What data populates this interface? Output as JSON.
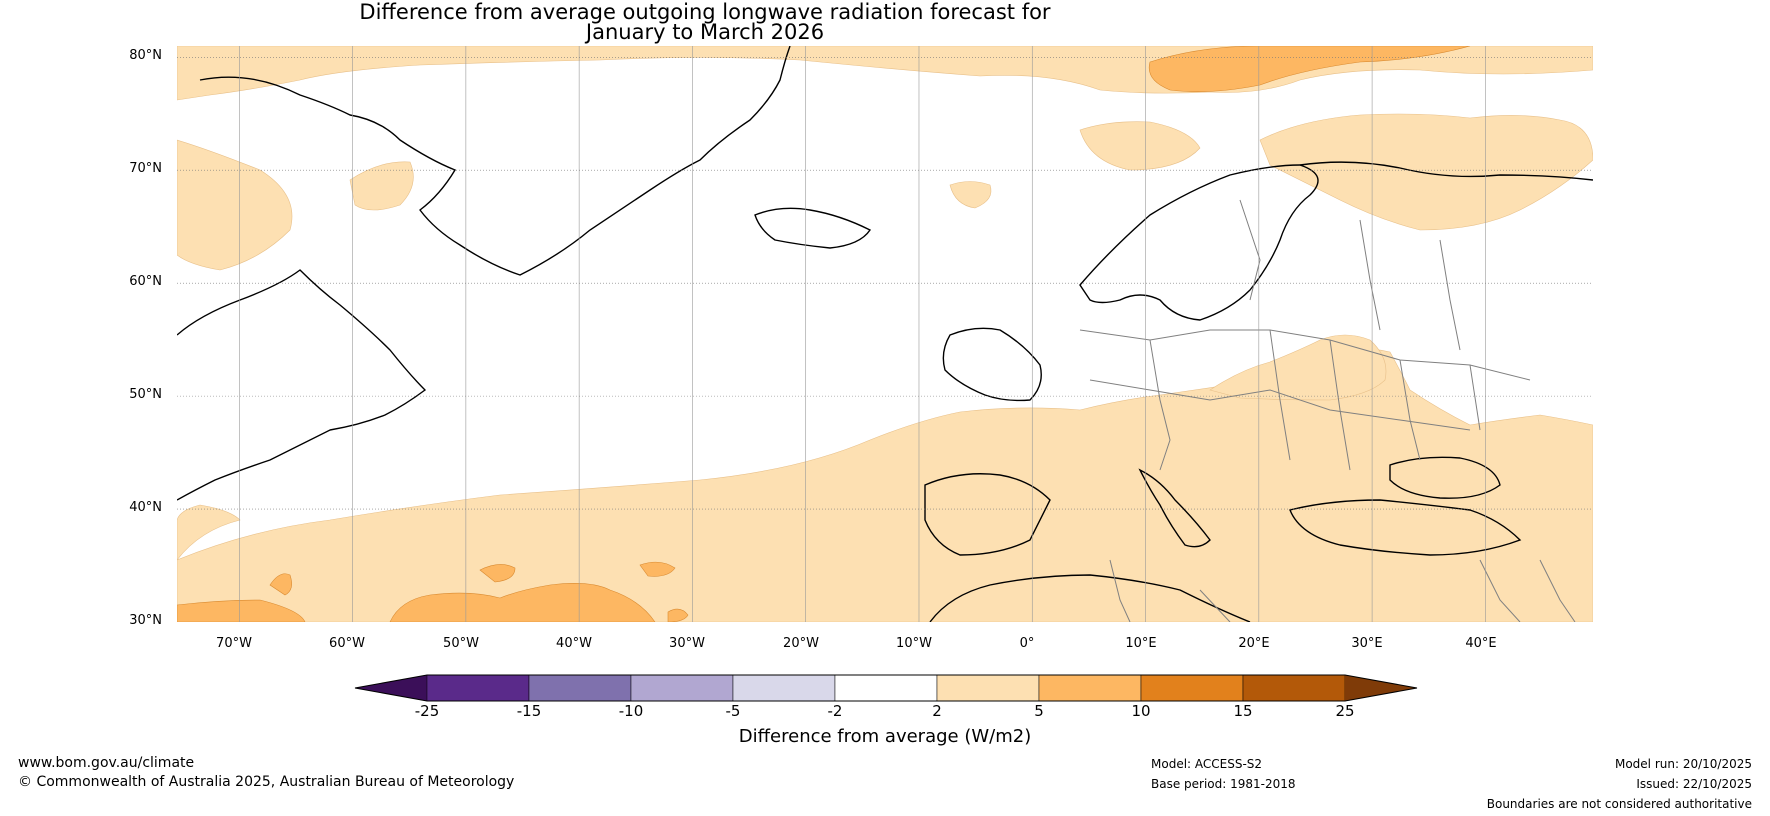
{
  "title": {
    "line1": "Difference from average outgoing longwave radiation forecast for",
    "line2": "January to March 2026"
  },
  "map": {
    "lat_labels": [
      "80°N",
      "70°N",
      "60°N",
      "50°N",
      "40°N",
      "30°N"
    ],
    "lon_labels": [
      "70°W",
      "60°W",
      "50°W",
      "40°W",
      "30°W",
      "20°W",
      "10°W",
      "0°",
      "10°E",
      "20°E",
      "30°E",
      "40°E"
    ],
    "lon_range": [
      -75.5,
      49.5
    ],
    "lat_range": [
      30,
      81
    ],
    "regions": [
      {
        "name": "Greenland",
        "type": "land"
      },
      {
        "name": "North America",
        "type": "land"
      },
      {
        "name": "Iceland",
        "type": "land"
      },
      {
        "name": "Europe",
        "type": "land"
      },
      {
        "name": "Africa",
        "type": "land"
      }
    ]
  },
  "colorbar": {
    "title": "Difference from average (W/m2)",
    "ticks": [
      "-25",
      "-15",
      "-10",
      "-5",
      "-2",
      "2",
      "5",
      "10",
      "15",
      "25"
    ],
    "colors": [
      "#3b0f59",
      "#5a2a8a",
      "#7f71ad",
      "#b1a7d1",
      "#d9d8ea",
      "#ffffff",
      "#fde0b2",
      "#fdb762",
      "#e2811c",
      "#b35909",
      "#7f3b08"
    ]
  },
  "colors": {
    "land_outline": "#000000",
    "grid": "#888888",
    "anomaly_2_5": "#fde0b2",
    "anomaly_5_10": "#fdb762",
    "anomaly_10_15": "#e2811c"
  },
  "footer": {
    "website": "www.bom.gov.au/climate",
    "copyright": "© Commonwealth of Australia 2025, Australian Bureau of Meteorology",
    "model": "Model: ACCESS-S2",
    "base_period": "Base period: 1981-2018",
    "model_run": "Model run: 20/10/2025",
    "issued": "Issued: 22/10/2025",
    "disclaimer": "Boundaries are not considered authoritative"
  }
}
